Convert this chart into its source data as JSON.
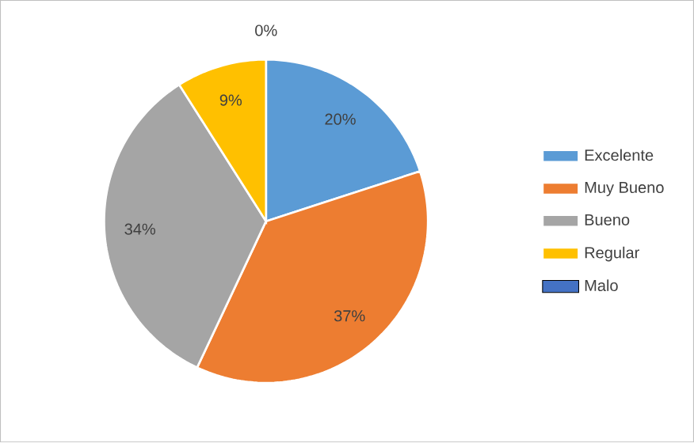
{
  "chart_data": {
    "type": "pie",
    "categories": [
      "Excelente",
      "Muy Bueno",
      "Bueno",
      "Regular",
      "Malo"
    ],
    "values": [
      20,
      37,
      34,
      9,
      0
    ],
    "colors": [
      "#5b9bd5",
      "#ed7d31",
      "#a5a5a5",
      "#ffc000",
      "#4472c4"
    ],
    "value_labels": [
      "20%",
      "37%",
      "34%",
      "9%",
      "0%"
    ],
    "legend": "right"
  }
}
